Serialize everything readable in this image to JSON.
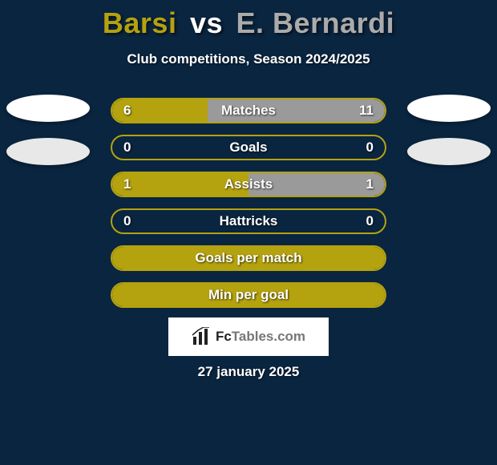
{
  "background_color": "#0a2540",
  "title": {
    "player1": "Barsi",
    "vs": "vs",
    "player2": "E. Bernardi",
    "player1_color": "#b4a20f",
    "vs_color": "#ffffff",
    "player2_color": "#ababab",
    "fontsize": 36
  },
  "subtitle": {
    "text": "Club competitions, Season 2024/2025",
    "fontsize": 17
  },
  "side_ellipses": {
    "left": [
      {
        "color": "#ffffff"
      },
      {
        "color": "#e8e8e8"
      }
    ],
    "right": [
      {
        "color": "#ffffff"
      },
      {
        "color": "#e8e8e8"
      }
    ]
  },
  "bars": {
    "border_color": "#b4a20f",
    "left_fill_color": "#b4a20f",
    "right_fill_color": "#9a9a9a",
    "label_fontsize": 17,
    "items": [
      {
        "name": "Matches",
        "left_val": "6",
        "right_val": "11",
        "left_pct": 35,
        "right_pct": 65
      },
      {
        "name": "Goals",
        "left_val": "0",
        "right_val": "0",
        "left_pct": 0,
        "right_pct": 0
      },
      {
        "name": "Assists",
        "left_val": "1",
        "right_val": "1",
        "left_pct": 50,
        "right_pct": 50
      },
      {
        "name": "Hattricks",
        "left_val": "0",
        "right_val": "0",
        "left_pct": 0,
        "right_pct": 0
      },
      {
        "name": "Goals per match",
        "left_val": "",
        "right_val": "",
        "left_pct": 100,
        "right_pct": 0
      },
      {
        "name": "Min per goal",
        "left_val": "",
        "right_val": "",
        "left_pct": 100,
        "right_pct": 0
      }
    ]
  },
  "footer": {
    "brand_fc": "Fc",
    "brand_tables": "Tables.com",
    "date": "27 january 2025",
    "badge_bg": "#ffffff"
  }
}
